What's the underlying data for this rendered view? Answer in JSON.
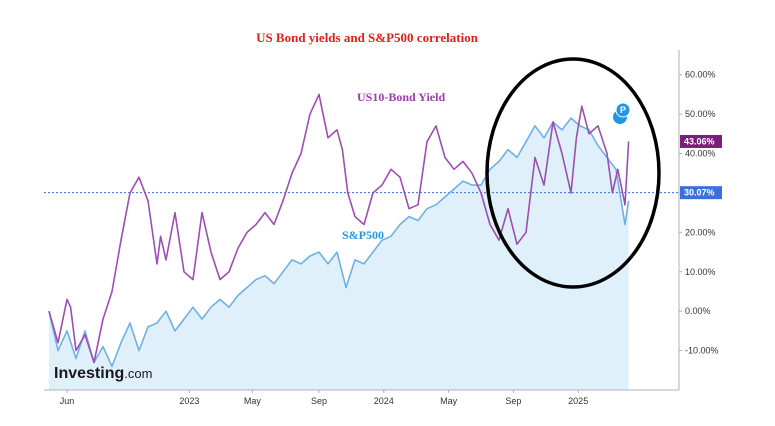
{
  "chart_data": {
    "type": "line",
    "title": "US Bond yields and S&P500 correlation",
    "xlabel": "",
    "ylabel": "",
    "ylim": [
      -20,
      65
    ],
    "x_range": [
      0,
      33
    ],
    "y_ticks": [
      {
        "value": 60,
        "label": "60.00%"
      },
      {
        "value": 50,
        "label": "50.00%"
      },
      {
        "value": 40,
        "label": "40.00%"
      },
      {
        "value": 30,
        "label": "30.00%"
      },
      {
        "value": 20,
        "label": "20.00%"
      },
      {
        "value": 10,
        "label": "10.00%"
      },
      {
        "value": 0,
        "label": "0.00%"
      },
      {
        "value": -10,
        "label": "-10.00%"
      }
    ],
    "x_ticks": [
      {
        "value": 1.0,
        "label": "Jun"
      },
      {
        "value": 7.8,
        "label": "2023"
      },
      {
        "value": 11.3,
        "label": "May"
      },
      {
        "value": 15.0,
        "label": "Sep"
      },
      {
        "value": 18.6,
        "label": "2024"
      },
      {
        "value": 22.2,
        "label": "May"
      },
      {
        "value": 25.8,
        "label": "Sep"
      },
      {
        "value": 29.4,
        "label": "2025"
      }
    ],
    "reference_line": {
      "value": 30.07,
      "label": "30.07%",
      "color": "#3b6fe0"
    },
    "last_value_tag": {
      "value": 43.06,
      "label": "43.06%",
      "color": "#7b1f7b"
    },
    "annotations": [
      {
        "text": "US10-Bond Yield",
        "color": "#9b3fa8"
      },
      {
        "text": "S&P500",
        "color": "#2196e3"
      }
    ],
    "event_marker": {
      "label": "P"
    },
    "series": [
      {
        "name": "US10-Bond Yield",
        "color": "#9b4fb0",
        "x": [
          0,
          0.5,
          1.0,
          1.2,
          1.5,
          2.0,
          2.5,
          3.0,
          3.5,
          4.0,
          4.5,
          5.0,
          5.5,
          6.0,
          6.2,
          6.5,
          7.0,
          7.5,
          8.0,
          8.5,
          9.0,
          9.5,
          10.0,
          10.5,
          11.0,
          11.5,
          12.0,
          12.5,
          13.0,
          13.5,
          14.0,
          14.5,
          15.0,
          15.5,
          16.0,
          16.3,
          16.6,
          17.0,
          17.5,
          18.0,
          18.5,
          19.0,
          19.5,
          20.0,
          20.5,
          21.0,
          21.5,
          22.0,
          22.5,
          23.0,
          23.5,
          24.0,
          24.5,
          25.0,
          25.5,
          26.0,
          26.5,
          27.0,
          27.5,
          28.0,
          28.5,
          29.0,
          29.3,
          29.6,
          30.0,
          30.5,
          31.0,
          31.3,
          31.6,
          32.0,
          32.2
        ],
        "values": [
          0,
          -8,
          3,
          1,
          -10,
          -6,
          -13,
          -2,
          5,
          18,
          30,
          34,
          28,
          12,
          19,
          13,
          25,
          10,
          8,
          25,
          15,
          8,
          10,
          16,
          20,
          22,
          25,
          22,
          28,
          35,
          40,
          50,
          55,
          44,
          46,
          41,
          30,
          24,
          22,
          30,
          32,
          36,
          34,
          26,
          27,
          43,
          47,
          39,
          36,
          38,
          35,
          30,
          22,
          18,
          26,
          17,
          20,
          39,
          32,
          48,
          40,
          30,
          44,
          52,
          45,
          47,
          40,
          30,
          36,
          27,
          43.06
        ]
      },
      {
        "name": "S&P500",
        "color": "#6fb0e6",
        "fill": "#dff0fa",
        "x": [
          0,
          0.5,
          1.0,
          1.5,
          2.0,
          2.5,
          3.0,
          3.5,
          4.0,
          4.5,
          5.0,
          5.5,
          6.0,
          6.5,
          7.0,
          7.5,
          8.0,
          8.5,
          9.0,
          9.5,
          10.0,
          10.5,
          11.0,
          11.5,
          12.0,
          12.5,
          13.0,
          13.5,
          14.0,
          14.5,
          15.0,
          15.5,
          16.0,
          16.5,
          17.0,
          17.5,
          18.0,
          18.5,
          19.0,
          19.5,
          20.0,
          20.5,
          21.0,
          21.5,
          22.0,
          22.5,
          23.0,
          23.5,
          24.0,
          24.5,
          25.0,
          25.5,
          26.0,
          26.5,
          27.0,
          27.5,
          28.0,
          28.5,
          29.0,
          29.5,
          30.0,
          30.5,
          31.0,
          31.5,
          32.0,
          32.2
        ],
        "values": [
          0,
          -10,
          -5,
          -12,
          -5,
          -13,
          -9,
          -14,
          -8,
          -3,
          -10,
          -4,
          -3,
          0,
          -5,
          -2,
          1,
          -2,
          1,
          3,
          1,
          4,
          6,
          8,
          9,
          7,
          10,
          13,
          12,
          14,
          15,
          12,
          15,
          6,
          13,
          12,
          15,
          18,
          19,
          22,
          24,
          23,
          26,
          27,
          29,
          31,
          33,
          32,
          32,
          36,
          38,
          41,
          39,
          43,
          47,
          44,
          48,
          46,
          49,
          47,
          46,
          42,
          39,
          36,
          22,
          28
        ]
      }
    ]
  },
  "branding": {
    "logo_main": "Investing",
    "logo_sub": ".com"
  }
}
